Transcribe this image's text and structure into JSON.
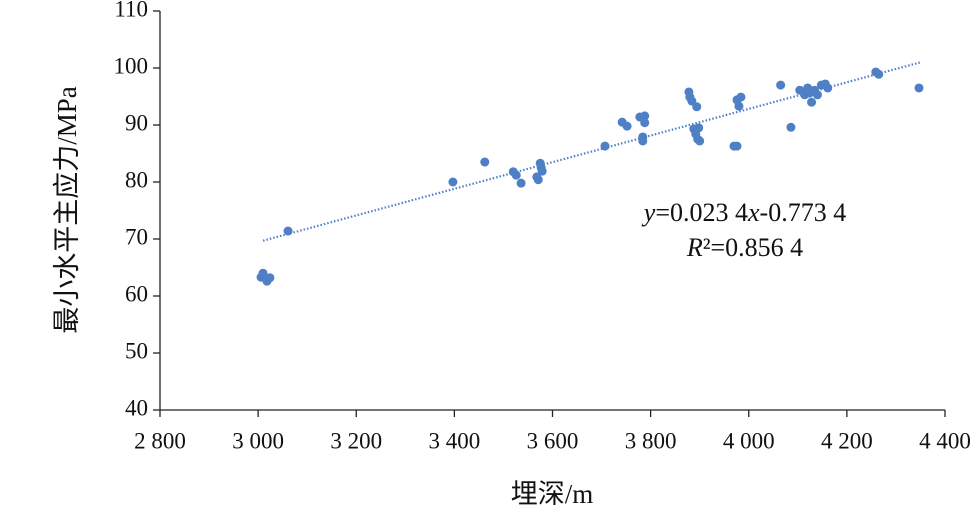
{
  "chart_data": {
    "type": "scatter",
    "xlabel": "埋深/m",
    "ylabel": "最小水平主应力/MPa",
    "xlim": [
      2800,
      4400
    ],
    "ylim": [
      40,
      110
    ],
    "xticks": [
      {
        "value": 2800,
        "label": "2 800"
      },
      {
        "value": 3000,
        "label": "3 000"
      },
      {
        "value": 3200,
        "label": "3 200"
      },
      {
        "value": 3400,
        "label": "3 400"
      },
      {
        "value": 3600,
        "label": "3 600"
      },
      {
        "value": 3800,
        "label": "3 800"
      },
      {
        "value": 4000,
        "label": "4 000"
      },
      {
        "value": 4200,
        "label": "4 200"
      },
      {
        "value": 4400,
        "label": "4 400"
      }
    ],
    "yticks": [
      40,
      50,
      60,
      70,
      80,
      90,
      100,
      110
    ],
    "series": [
      {
        "color": "#4f7fc5",
        "x": [
          3006,
          3010,
          3018,
          3024,
          3061,
          3397,
          3462,
          3520,
          3526,
          3536,
          3568,
          3571,
          3575,
          3577,
          3579,
          3707,
          3742,
          3752,
          3778,
          3788,
          3788,
          3784,
          3784,
          3878,
          3880,
          3884,
          3888,
          3892,
          3894,
          3896,
          3898,
          3900,
          3970,
          3976,
          3976,
          3984,
          3980,
          4065,
          4086,
          4104,
          4114,
          4120,
          4124,
          4128,
          4134,
          4140,
          4148,
          4156,
          4161,
          4259,
          4265,
          4347
        ],
        "values": [
          63.3,
          64.0,
          62.6,
          63.2,
          71.4,
          80.0,
          83.5,
          81.8,
          81.2,
          79.8,
          80.9,
          80.4,
          83.3,
          82.5,
          81.9,
          86.3,
          90.5,
          89.8,
          91.4,
          91.6,
          90.4,
          87.9,
          87.2,
          95.8,
          94.9,
          94.2,
          89.3,
          88.4,
          93.2,
          87.5,
          89.5,
          87.2,
          86.3,
          86.3,
          94.4,
          94.9,
          93.3,
          97.0,
          89.6,
          96.1,
          95.3,
          96.5,
          95.6,
          94.0,
          96.1,
          95.3,
          97.0,
          97.2,
          96.5,
          99.3,
          98.9,
          96.5
        ]
      }
    ],
    "trendline": {
      "x": [
        3010,
        4350
      ],
      "values": [
        69.7,
        101.0
      ],
      "color": "#4f7fc5"
    },
    "annotations": [
      "y=0.023 4x-0.773 4",
      "R²=0.856 4"
    ]
  }
}
